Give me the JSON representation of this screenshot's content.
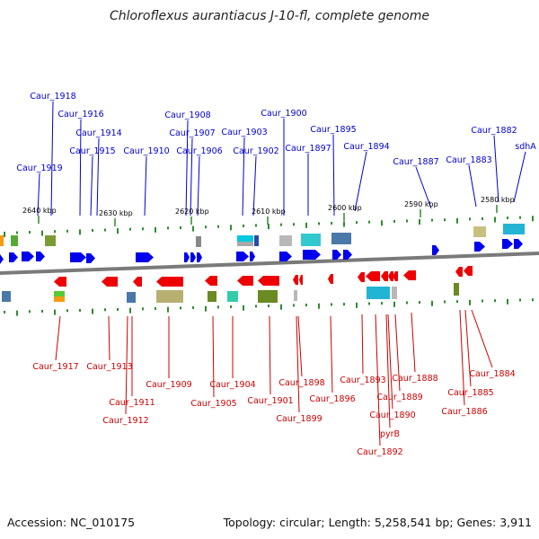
{
  "title": "Chloroflexus aurantiacus J-10-fl, complete genome",
  "footer": {
    "accession": "Accession: NC_010175",
    "summary": "Topology: circular; Length: 5,258,541 bp; Genes: 3,911"
  },
  "colors": {
    "forward_gene": "#0000ee",
    "reverse_gene": "#ee0000",
    "forward_label": "#0000cc",
    "reverse_label": "#cc0000",
    "backbone": "#7a7a7a",
    "ticks": "#2e8b2e"
  },
  "scale_ticks": [
    "2640 kbp",
    "2630 kbp",
    "2620 kbp",
    "2610 kbp",
    "2600 kbp",
    "2590 kbp",
    "2580 kbp"
  ],
  "forward_labels": [
    "Caur_1918",
    "Caur_1916",
    "Caur_1914",
    "Caur_1915",
    "Caur_1919",
    "Caur_1910",
    "Caur_1908",
    "Caur_1907",
    "Caur_1906",
    "Caur_1903",
    "Caur_1902",
    "Caur_1900",
    "Caur_1897",
    "Caur_1895",
    "Caur_1894",
    "Caur_1887",
    "Caur_1882",
    "Caur_1883",
    "sdhA"
  ],
  "reverse_labels": [
    "Caur_1917",
    "Caur_1913",
    "Caur_1911",
    "Caur_1912",
    "Caur_1909",
    "Caur_1905",
    "Caur_1904",
    "Caur_1901",
    "Caur_1898",
    "Caur_1899",
    "Caur_1896",
    "Caur_1893",
    "Caur_1888",
    "Caur_1889",
    "Caur_1890",
    "pyrB",
    "Caur_1892",
    "Caur_1884",
    "Caur_1885",
    "Caur_1886"
  ]
}
